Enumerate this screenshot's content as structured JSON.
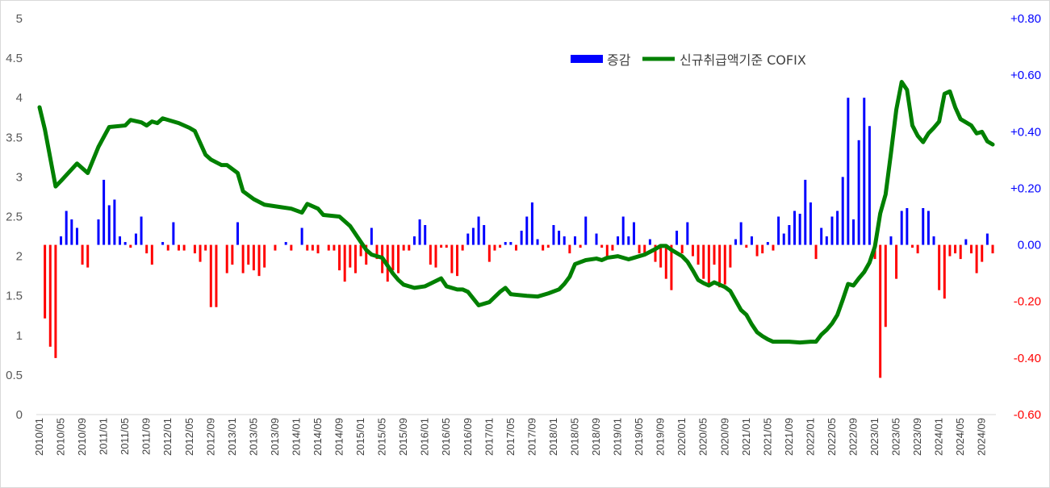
{
  "chart_data": {
    "type": "bar+line",
    "title": "",
    "legend": [
      {
        "name": "증감",
        "kind": "bar",
        "color": "#0000ff"
      },
      {
        "name": "신규취급액기준 COFIX",
        "kind": "line",
        "color": "#008000"
      }
    ],
    "legend_position": "top-right",
    "left_axis": {
      "ylim": [
        0,
        5
      ],
      "ticks": [
        "0",
        "0.5",
        "1",
        "1.5",
        "2",
        "2.5",
        "3",
        "3.5",
        "4",
        "4.5",
        "5"
      ],
      "tick_values": [
        0,
        0.5,
        1,
        1.5,
        2,
        2.5,
        3,
        3.5,
        4,
        4.5,
        5
      ]
    },
    "right_axis": {
      "ylim": [
        -0.6,
        0.8
      ],
      "ticks": [
        "-0.60",
        "-0.40",
        "-0.20",
        "0.00",
        "+0.20",
        "+0.40",
        "+0.60",
        "+0.80"
      ],
      "tick_values": [
        -0.6,
        -0.4,
        -0.2,
        0,
        0.2,
        0.4,
        0.6,
        0.8
      ],
      "positive_color": "#0000ff",
      "negative_color": "#ff0000",
      "zero_color": "#0000ff"
    },
    "x_labels": [
      "2010/01",
      "2010/05",
      "2010/09",
      "2011/01",
      "2011/05",
      "2011/09",
      "2012/01",
      "2012/05",
      "2012/09",
      "2013/01",
      "2013/05",
      "2013/09",
      "2014/01",
      "2014/05",
      "2014/09",
      "2015/01",
      "2015/05",
      "2015/09",
      "2016/01",
      "2016/05",
      "2016/09",
      "2017/01",
      "2017/05",
      "2017/09",
      "2018/01",
      "2018/05",
      "2018/09",
      "2019/01",
      "2019/05",
      "2019/09",
      "2020/01",
      "2020/05",
      "2020/09",
      "2021/01",
      "2021/05",
      "2021/09",
      "2022/01",
      "2022/05",
      "2022/09",
      "2023/01",
      "2023/05",
      "2023/09",
      "2024/01",
      "2024/05",
      "2024/09"
    ],
    "months_count": 178,
    "cofix_keypoints": [
      [
        0,
        3.88
      ],
      [
        1,
        3.6
      ],
      [
        3,
        2.88
      ],
      [
        4,
        2.95
      ],
      [
        7,
        3.17
      ],
      [
        9,
        3.05
      ],
      [
        11,
        3.38
      ],
      [
        13,
        3.63
      ],
      [
        16,
        3.65
      ],
      [
        17,
        3.72
      ],
      [
        19,
        3.69
      ],
      [
        20,
        3.65
      ],
      [
        21,
        3.7
      ],
      [
        22,
        3.68
      ],
      [
        23,
        3.74
      ],
      [
        26,
        3.68
      ],
      [
        28,
        3.62
      ],
      [
        29,
        3.58
      ],
      [
        31,
        3.28
      ],
      [
        32,
        3.22
      ],
      [
        34,
        3.15
      ],
      [
        35,
        3.15
      ],
      [
        37,
        3.05
      ],
      [
        38,
        2.82
      ],
      [
        40,
        2.72
      ],
      [
        42,
        2.65
      ],
      [
        45,
        2.62
      ],
      [
        47,
        2.6
      ],
      [
        49,
        2.55
      ],
      [
        50,
        2.66
      ],
      [
        52,
        2.6
      ],
      [
        53,
        2.52
      ],
      [
        56,
        2.5
      ],
      [
        58,
        2.38
      ],
      [
        60,
        2.18
      ],
      [
        61,
        2.08
      ],
      [
        62,
        2.02
      ],
      [
        63,
        2.0
      ],
      [
        64,
        1.98
      ],
      [
        66,
        1.78
      ],
      [
        67,
        1.7
      ],
      [
        68,
        1.64
      ],
      [
        70,
        1.6
      ],
      [
        72,
        1.62
      ],
      [
        75,
        1.72
      ],
      [
        76,
        1.62
      ],
      [
        78,
        1.58
      ],
      [
        79,
        1.58
      ],
      [
        80,
        1.55
      ],
      [
        82,
        1.38
      ],
      [
        84,
        1.42
      ],
      [
        86,
        1.55
      ],
      [
        87,
        1.6
      ],
      [
        88,
        1.52
      ],
      [
        91,
        1.5
      ],
      [
        93,
        1.49
      ],
      [
        95,
        1.53
      ],
      [
        97,
        1.58
      ],
      [
        98,
        1.65
      ],
      [
        99,
        1.74
      ],
      [
        100,
        1.9
      ],
      [
        102,
        1.95
      ],
      [
        104,
        1.97
      ],
      [
        105,
        1.95
      ],
      [
        106,
        1.98
      ],
      [
        108,
        2.0
      ],
      [
        110,
        1.96
      ],
      [
        111,
        1.98
      ],
      [
        113,
        2.02
      ],
      [
        115,
        2.09
      ],
      [
        116,
        2.13
      ],
      [
        117,
        2.13
      ],
      [
        118,
        2.08
      ],
      [
        120,
        2.0
      ],
      [
        121,
        1.93
      ],
      [
        122,
        1.82
      ],
      [
        123,
        1.7
      ],
      [
        124,
        1.66
      ],
      [
        125,
        1.63
      ],
      [
        126,
        1.67
      ],
      [
        128,
        1.61
      ],
      [
        129,
        1.56
      ],
      [
        130,
        1.44
      ],
      [
        131,
        1.32
      ],
      [
        132,
        1.26
      ],
      [
        133,
        1.14
      ],
      [
        134,
        1.04
      ],
      [
        135,
        0.99
      ],
      [
        136,
        0.95
      ],
      [
        137,
        0.92
      ],
      [
        138,
        0.92
      ],
      [
        140,
        0.92
      ],
      [
        142,
        0.91
      ],
      [
        144,
        0.92
      ],
      [
        145,
        0.92
      ],
      [
        146,
        1.01
      ],
      [
        147,
        1.07
      ],
      [
        148,
        1.15
      ],
      [
        149,
        1.26
      ],
      [
        150,
        1.45
      ],
      [
        151,
        1.65
      ],
      [
        152,
        1.63
      ],
      [
        153,
        1.72
      ],
      [
        154,
        1.8
      ],
      [
        155,
        1.92
      ],
      [
        156,
        2.12
      ],
      [
        157,
        2.54
      ],
      [
        158,
        2.78
      ],
      [
        159,
        3.3
      ],
      [
        160,
        3.85
      ],
      [
        161,
        4.2
      ],
      [
        162,
        4.1
      ],
      [
        163,
        3.65
      ],
      [
        164,
        3.52
      ],
      [
        165,
        3.44
      ],
      [
        166,
        3.55
      ],
      [
        167,
        3.62
      ],
      [
        168,
        3.7
      ],
      [
        169,
        4.05
      ],
      [
        170,
        4.08
      ],
      [
        171,
        3.88
      ],
      [
        172,
        3.73
      ],
      [
        174,
        3.65
      ],
      [
        175,
        3.55
      ],
      [
        176,
        3.57
      ],
      [
        177,
        3.45
      ],
      [
        178,
        3.41
      ]
    ],
    "change_nonzero_keypoints": [
      [
        1,
        -0.26
      ],
      [
        2,
        -0.36
      ],
      [
        3,
        -0.4
      ],
      [
        4,
        0.03
      ],
      [
        5,
        0.12
      ],
      [
        6,
        0.09
      ],
      [
        7,
        0.06
      ],
      [
        8,
        -0.07
      ],
      [
        9,
        -0.08
      ],
      [
        11,
        0.09
      ],
      [
        12,
        0.23
      ],
      [
        13,
        0.14
      ],
      [
        14,
        0.16
      ],
      [
        15,
        0.03
      ],
      [
        16,
        0.01
      ],
      [
        17,
        -0.01
      ],
      [
        18,
        0.04
      ],
      [
        19,
        0.1
      ],
      [
        20,
        -0.03
      ],
      [
        21,
        -0.07
      ],
      [
        23,
        0.01
      ],
      [
        24,
        -0.02
      ],
      [
        25,
        0.08
      ],
      [
        26,
        -0.02
      ],
      [
        27,
        -0.02
      ],
      [
        29,
        -0.03
      ],
      [
        30,
        -0.06
      ],
      [
        31,
        -0.02
      ],
      [
        32,
        -0.22
      ],
      [
        33,
        -0.22
      ],
      [
        35,
        -0.1
      ],
      [
        36,
        -0.07
      ],
      [
        37,
        0.08
      ],
      [
        38,
        -0.1
      ],
      [
        39,
        -0.07
      ],
      [
        40,
        -0.09
      ],
      [
        41,
        -0.11
      ],
      [
        42,
        -0.08
      ],
      [
        44,
        -0.02
      ],
      [
        46,
        0.01
      ],
      [
        47,
        -0.02
      ],
      [
        49,
        0.06
      ],
      [
        50,
        -0.02
      ],
      [
        51,
        -0.02
      ],
      [
        52,
        -0.03
      ],
      [
        54,
        -0.02
      ],
      [
        55,
        -0.02
      ],
      [
        56,
        -0.09
      ],
      [
        57,
        -0.13
      ],
      [
        58,
        -0.08
      ],
      [
        59,
        -0.1
      ],
      [
        60,
        -0.04
      ],
      [
        61,
        -0.07
      ],
      [
        62,
        0.06
      ],
      [
        63,
        -0.05
      ],
      [
        64,
        -0.1
      ],
      [
        65,
        -0.13
      ],
      [
        66,
        -0.09
      ],
      [
        67,
        -0.1
      ],
      [
        68,
        -0.02
      ],
      [
        69,
        -0.02
      ],
      [
        70,
        0.03
      ],
      [
        71,
        0.09
      ],
      [
        72,
        0.07
      ],
      [
        73,
        -0.07
      ],
      [
        74,
        -0.08
      ],
      [
        75,
        -0.01
      ],
      [
        76,
        -0.01
      ],
      [
        77,
        -0.1
      ],
      [
        78,
        -0.11
      ],
      [
        79,
        -0.02
      ],
      [
        80,
        0.04
      ],
      [
        81,
        0.06
      ],
      [
        82,
        0.1
      ],
      [
        83,
        0.07
      ],
      [
        84,
        -0.06
      ],
      [
        85,
        -0.02
      ],
      [
        86,
        -0.01
      ],
      [
        87,
        0.01
      ],
      [
        88,
        0.01
      ],
      [
        89,
        -0.02
      ],
      [
        90,
        0.05
      ],
      [
        91,
        0.1
      ],
      [
        92,
        0.15
      ],
      [
        93,
        0.02
      ],
      [
        94,
        -0.02
      ],
      [
        95,
        -0.01
      ],
      [
        96,
        0.07
      ],
      [
        97,
        0.05
      ],
      [
        98,
        0.03
      ],
      [
        99,
        -0.03
      ],
      [
        100,
        0.03
      ],
      [
        101,
        -0.01
      ],
      [
        102,
        0.1
      ],
      [
        104,
        0.04
      ],
      [
        105,
        -0.01
      ],
      [
        106,
        -0.04
      ],
      [
        107,
        -0.02
      ],
      [
        108,
        0.03
      ],
      [
        109,
        0.1
      ],
      [
        110,
        0.03
      ],
      [
        111,
        0.08
      ],
      [
        112,
        -0.03
      ],
      [
        113,
        -0.03
      ],
      [
        114,
        0.02
      ],
      [
        115,
        -0.06
      ],
      [
        116,
        -0.08
      ],
      [
        117,
        -0.12
      ],
      [
        118,
        -0.16
      ],
      [
        119,
        0.05
      ],
      [
        120,
        -0.03
      ],
      [
        121,
        0.08
      ],
      [
        122,
        -0.04
      ],
      [
        123,
        -0.07
      ],
      [
        124,
        -0.12
      ],
      [
        125,
        -0.14
      ],
      [
        126,
        -0.07
      ],
      [
        127,
        -0.15
      ],
      [
        128,
        -0.14
      ],
      [
        129,
        -0.08
      ],
      [
        130,
        0.02
      ],
      [
        131,
        0.08
      ],
      [
        132,
        -0.01
      ],
      [
        133,
        0.03
      ],
      [
        134,
        -0.04
      ],
      [
        135,
        -0.03
      ],
      [
        136,
        0.01
      ],
      [
        137,
        -0.02
      ],
      [
        138,
        0.1
      ],
      [
        139,
        0.04
      ],
      [
        140,
        0.07
      ],
      [
        141,
        0.12
      ],
      [
        142,
        0.11
      ],
      [
        143,
        0.23
      ],
      [
        144,
        0.15
      ],
      [
        145,
        -0.05
      ],
      [
        146,
        0.06
      ],
      [
        147,
        0.03
      ],
      [
        148,
        0.1
      ],
      [
        149,
        0.12
      ],
      [
        150,
        0.24
      ],
      [
        151,
        0.52
      ],
      [
        152,
        0.09
      ],
      [
        153,
        0.37
      ],
      [
        154,
        0.52
      ],
      [
        155,
        0.42
      ],
      [
        156,
        -0.05
      ],
      [
        157,
        -0.47
      ],
      [
        158,
        -0.29
      ],
      [
        159,
        0.03
      ],
      [
        160,
        -0.12
      ],
      [
        161,
        0.12
      ],
      [
        162,
        0.13
      ],
      [
        163,
        -0.01
      ],
      [
        164,
        -0.03
      ],
      [
        165,
        0.13
      ],
      [
        166,
        0.12
      ],
      [
        167,
        0.03
      ],
      [
        168,
        -0.16
      ],
      [
        169,
        -0.19
      ],
      [
        170,
        -0.04
      ],
      [
        171,
        -0.03
      ],
      [
        172,
        -0.05
      ],
      [
        173,
        0.02
      ],
      [
        174,
        -0.03
      ],
      [
        175,
        -0.1
      ],
      [
        176,
        -0.06
      ],
      [
        177,
        0.04
      ],
      [
        178,
        -0.03
      ]
    ]
  }
}
